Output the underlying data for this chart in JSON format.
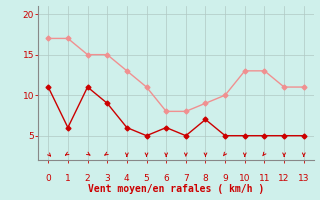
{
  "x": [
    0,
    1,
    2,
    3,
    4,
    5,
    6,
    7,
    8,
    9,
    10,
    11,
    12,
    13
  ],
  "vent_moyen": [
    11,
    6,
    11,
    9,
    6,
    5,
    6,
    5,
    7,
    5,
    5,
    5,
    5,
    5
  ],
  "rafales": [
    17,
    17,
    15,
    15,
    13,
    11,
    8,
    8,
    9,
    10,
    13,
    13,
    11,
    11
  ],
  "bg_color": "#cff0eb",
  "line_color_moyen": "#cc0000",
  "line_color_rafales": "#f09090",
  "xlabel": "Vent moyen/en rafales ( km/h )",
  "ylim": [
    2,
    21
  ],
  "xlim": [
    -0.5,
    13.5
  ],
  "yticks": [
    5,
    10,
    15,
    20
  ],
  "xticks": [
    0,
    1,
    2,
    3,
    4,
    5,
    6,
    7,
    8,
    9,
    10,
    11,
    12,
    13
  ],
  "grid_color": "#b0c8c4",
  "marker": "D",
  "marker_size": 2.5,
  "line_width": 1.0,
  "xlabel_fontsize": 7,
  "tick_fontsize": 6.5,
  "tick_color": "#cc0000",
  "spine_color": "#888888"
}
